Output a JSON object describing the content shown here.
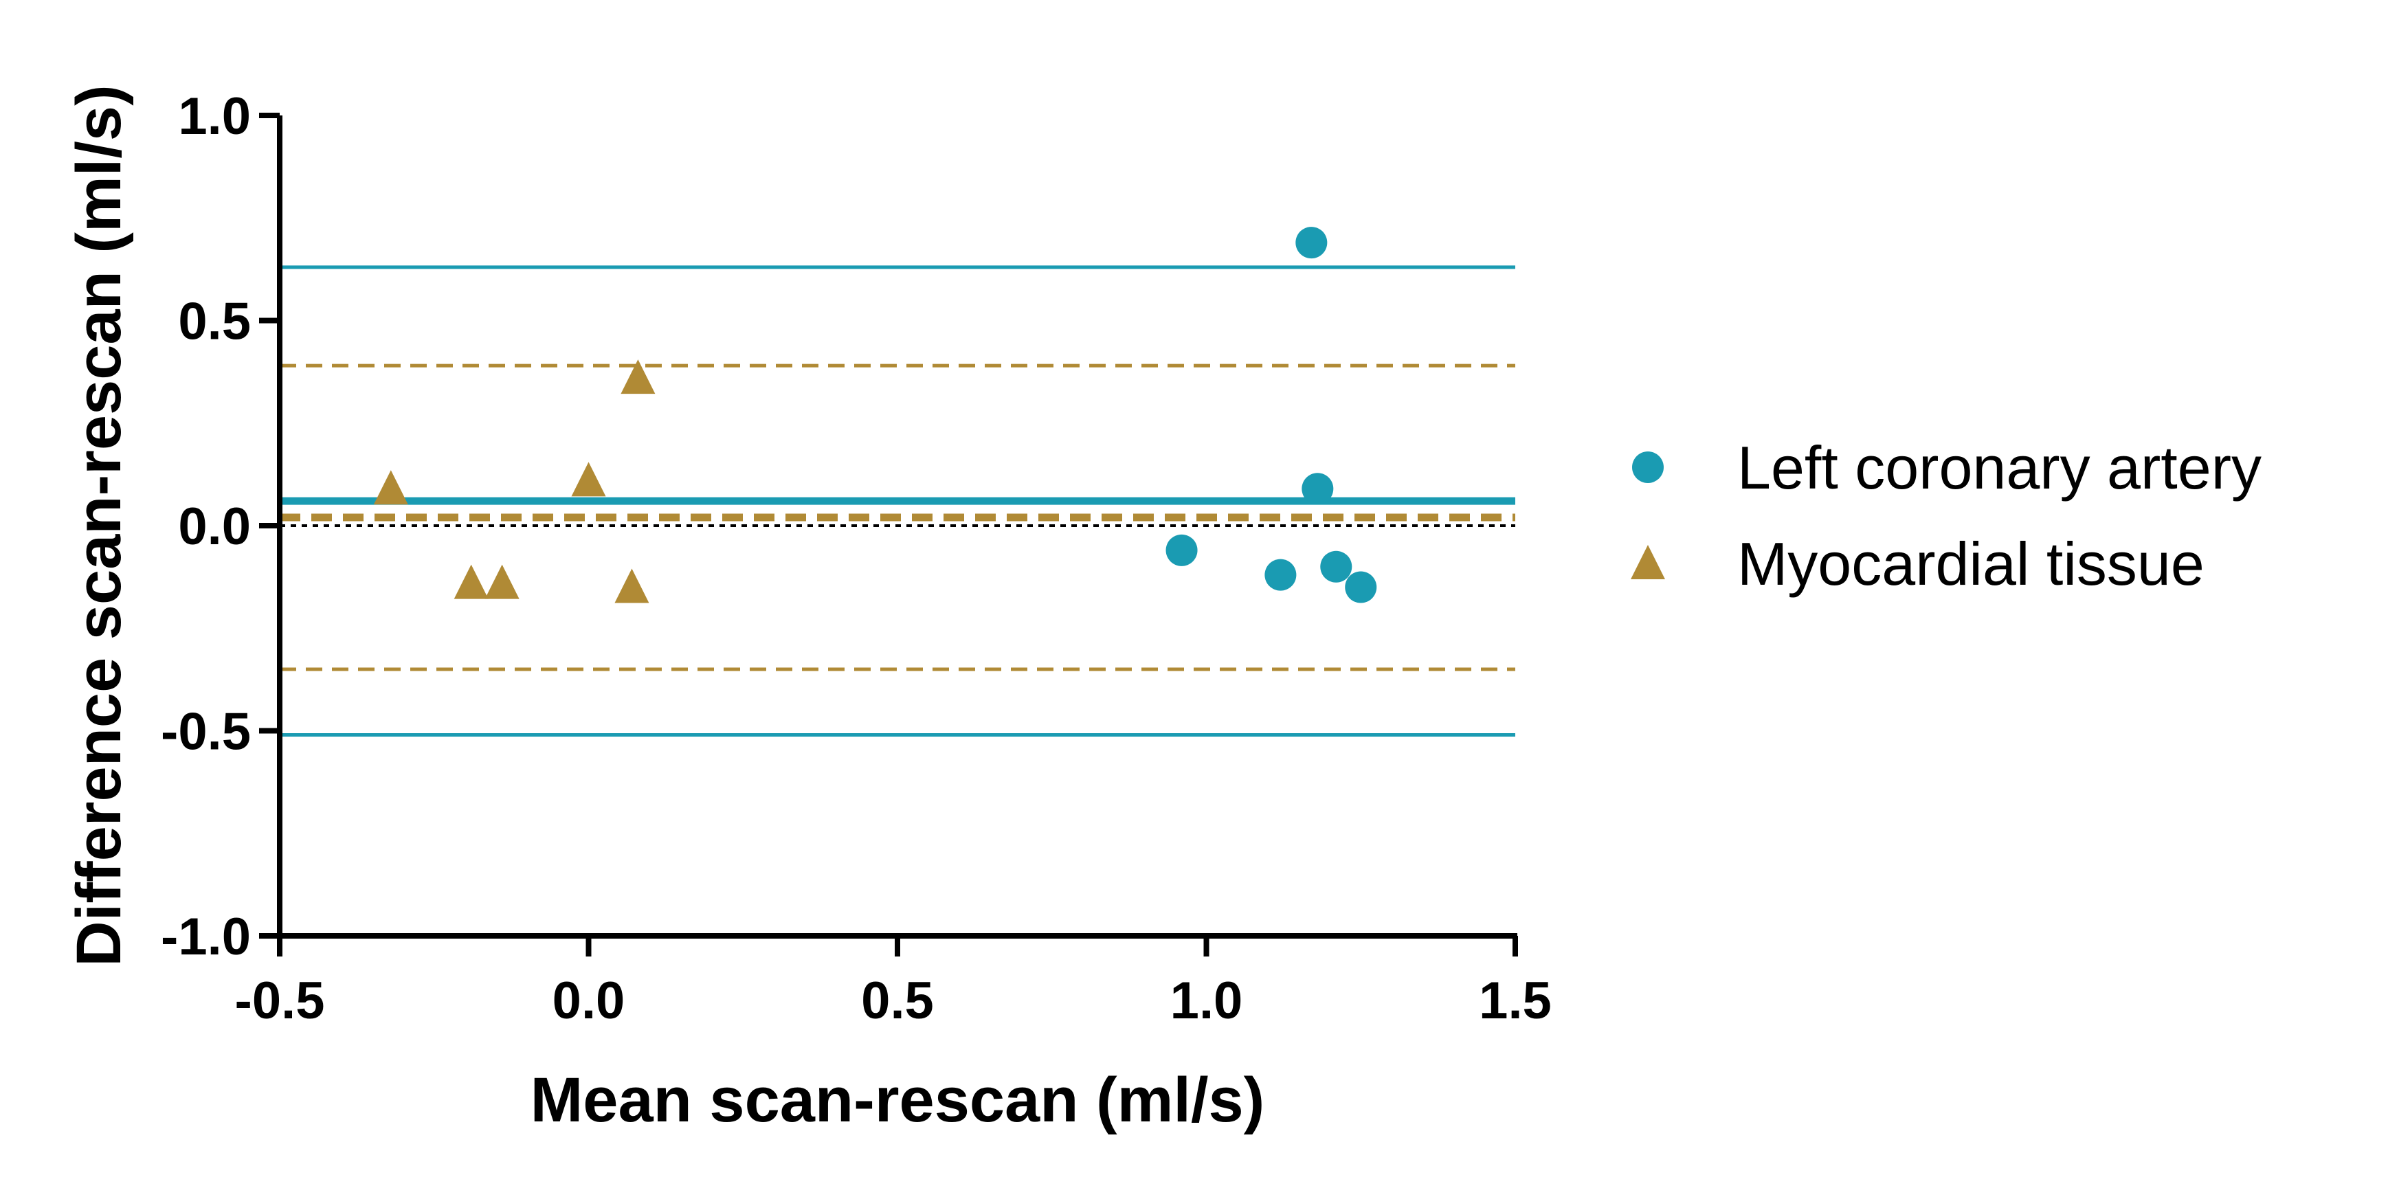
{
  "chart_data": {
    "type": "scatter",
    "subtype": "bland-altman",
    "title": "",
    "xlabel": "Mean scan-rescan (ml/s)",
    "ylabel": "Difference scan-rescan (ml/s)",
    "xlim": [
      -0.5,
      1.5
    ],
    "ylim": [
      -1.0,
      1.0
    ],
    "xticks": [
      -0.5,
      0.0,
      0.5,
      1.0,
      1.5
    ],
    "xtick_labels": [
      "-0.5",
      "0.0",
      "0.5",
      "1.0",
      "1.5"
    ],
    "yticks": [
      -1.0,
      -0.5,
      0.0,
      0.5,
      1.0
    ],
    "ytick_labels": [
      "-1.0",
      "-0.5",
      "0.0",
      "0.5",
      "1.0"
    ],
    "legend_position": "right",
    "series": [
      {
        "name": "Left coronary artery",
        "marker": "circle",
        "color": "#1a9bb2",
        "points": [
          {
            "x": 1.17,
            "y": 0.69
          },
          {
            "x": 1.18,
            "y": 0.09
          },
          {
            "x": 0.96,
            "y": -0.06
          },
          {
            "x": 1.12,
            "y": -0.12
          },
          {
            "x": 1.21,
            "y": -0.1
          },
          {
            "x": 1.25,
            "y": -0.15
          }
        ],
        "bias": 0.06,
        "upper_loa": 0.63,
        "lower_loa": -0.51,
        "line_style": "solid"
      },
      {
        "name": "Myocardial tissue",
        "marker": "triangle",
        "color": "#b08a35",
        "points": [
          {
            "x": -0.32,
            "y": 0.09
          },
          {
            "x": 0.0,
            "y": 0.11
          },
          {
            "x": 0.08,
            "y": 0.36
          },
          {
            "x": -0.19,
            "y": -0.14
          },
          {
            "x": -0.14,
            "y": -0.14
          },
          {
            "x": 0.07,
            "y": -0.15
          }
        ],
        "bias": 0.02,
        "upper_loa": 0.39,
        "lower_loa": -0.35,
        "line_style": "dashed"
      }
    ],
    "reference_line": {
      "y": 0.0,
      "style": "dotted",
      "color": "#000000"
    }
  }
}
